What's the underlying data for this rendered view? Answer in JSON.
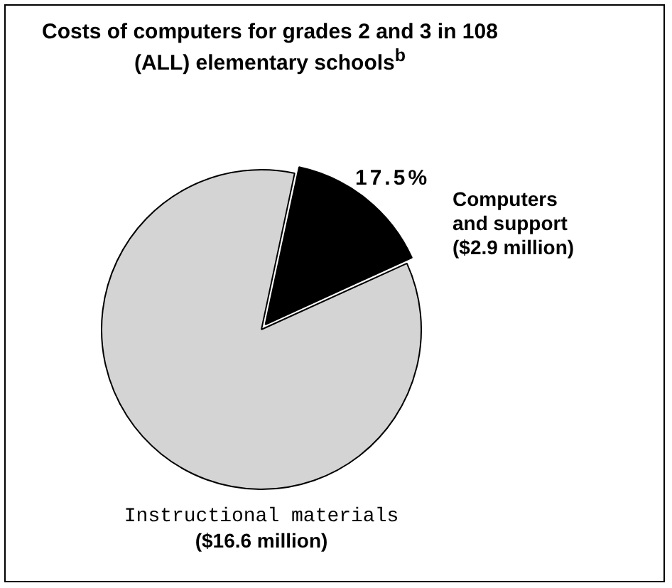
{
  "chart_data": {
    "type": "pie",
    "title": "Costs of computers for grades 2 and 3 in 108 (ALL) elementary schools$^{b}$",
    "categories": [
      "Computers and support",
      "Instructional materials"
    ],
    "values": [
      2.9,
      16.6
    ],
    "value_labels": [
      "($2.9 million)",
      "($16.6 million)"
    ],
    "colors": [
      "#000000",
      "#d4d4d4"
    ],
    "annotations": [
      "17.5%"
    ],
    "legend": false
  }
}
